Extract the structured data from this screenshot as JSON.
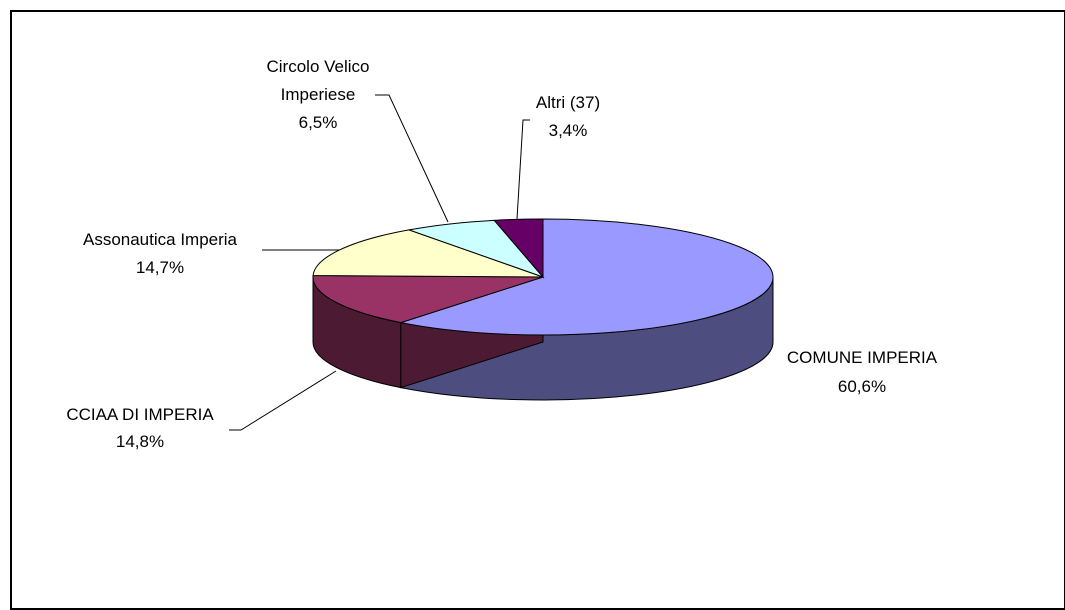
{
  "chart_data": {
    "type": "pie",
    "three_d": true,
    "title": "",
    "slices": [
      {
        "name": "COMUNE IMPERIA",
        "value": 60.6,
        "label": "60,6%",
        "color": "#9999FF"
      },
      {
        "name": "CCIAA DI IMPERIA",
        "value": 14.8,
        "label": "14,8%",
        "color": "#993366"
      },
      {
        "name": "Assonautica Imperia",
        "value": 14.7,
        "label": "14,7%",
        "color": "#FFFFCC"
      },
      {
        "name": "Circolo Velico Imperiese",
        "value": 6.5,
        "label": "6,5%",
        "color": "#CCFFFF"
      },
      {
        "name": "Altri (37)",
        "value": 3.4,
        "label": "3,4%",
        "color": "#660066"
      }
    ]
  }
}
